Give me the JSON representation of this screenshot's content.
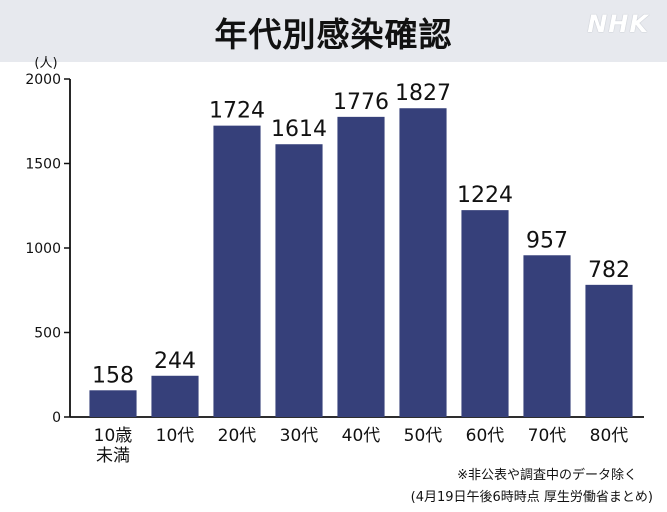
{
  "header": {
    "title": "年代別感染確認",
    "logo": "NHK"
  },
  "notes": {
    "footnote": "※非公表や調査中のデータ除く",
    "source": "(4月19日午後6時時点 厚生労働省まとめ)"
  },
  "colors": {
    "bar": "#36407a",
    "axis": "#111111",
    "header_bg": "#e7e9ee"
  },
  "chart_data": {
    "type": "bar",
    "title": "年代別感染確認",
    "ylabel": "(人)",
    "xlabel": "",
    "ylim": [
      0,
      2000
    ],
    "yticks": [
      0,
      500,
      1000,
      1500,
      2000
    ],
    "grid": false,
    "categories": [
      "10歳\n未満",
      "10代",
      "20代",
      "30代",
      "40代",
      "50代",
      "60代",
      "70代",
      "80代"
    ],
    "values": [
      158,
      244,
      1724,
      1614,
      1776,
      1827,
      1224,
      957,
      782
    ],
    "value_labels": [
      "158",
      "244",
      "1724",
      "1614",
      "1776",
      "1827",
      "1224",
      "957",
      "782"
    ]
  }
}
